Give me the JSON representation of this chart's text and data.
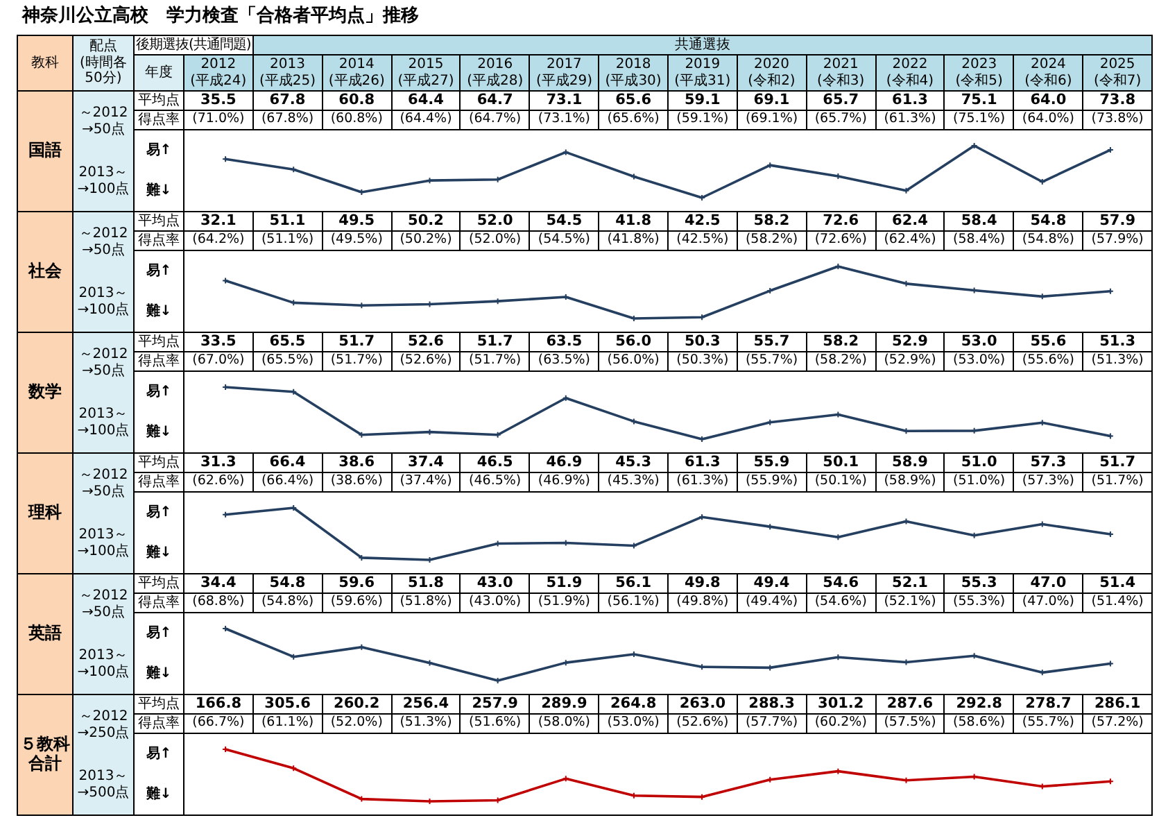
{
  "chart_data": [
    {
      "type": "heatmap",
      "title": "神奈川公立高校　学力検査「合格者平均点」推移",
      "xlabel": "年度",
      "ylabel": "国語",
      "annotations": [
        "教科",
        "配点",
        "(時間各50分)",
        "後期選抜(共通問題)",
        "共通選抜",
        "～2012\n→50点",
        "2013～\n→100点"
      ],
      "categories": [
        "2012\n(平成24)",
        "2013\n(平成25)",
        "2014\n(平成26)",
        "2015\n(平成27)",
        "2016\n(平成28)",
        "2017\n(平成29)",
        "2018\n(平成30)",
        "2019\n(平成31)",
        "2020\n(令和2)",
        "2021\n(令和3)",
        "2022\n(令和4)",
        "2023\n(令和5)",
        "2024\n(令和6)",
        "2025\n(令和7)"
      ],
      "y_categories": [
        "平均点"
      ],
      "cells": [
        [
          35.5,
          67.8,
          60.8,
          64.4,
          64.7,
          73.1,
          65.6,
          59.1,
          69.1,
          65.7,
          61.3,
          75.1,
          64.0,
          73.8
        ]
      ],
      "cell_labels": [
        [
          "35.5",
          "67.8",
          "60.8",
          "64.4",
          "64.7",
          "73.1",
          "65.6",
          "59.1",
          "69.1",
          "65.7",
          "61.3",
          "75.1",
          "64.0",
          "73.8"
        ]
      ]
    },
    {
      "type": "line",
      "tick_labels": false,
      "marker": "cross",
      "annotations": [
        "得点率",
        "易↑",
        "難↓"
      ],
      "categories": [
        null,
        null,
        null,
        null,
        null,
        null,
        null,
        null,
        null,
        null,
        null,
        null,
        null,
        null
      ],
      "series": [
        {
          "color": "#243f60",
          "values": [
            71.0,
            67.8,
            60.8,
            64.4,
            64.7,
            73.1,
            65.6,
            59.1,
            69.1,
            65.7,
            61.3,
            75.1,
            64.0,
            73.8
          ],
          "value_labels": [
            "(71.0%)",
            "(67.8%)",
            "(60.8%)",
            "(64.4%)",
            "(64.7%)",
            "(73.1%)",
            "(65.6%)",
            "(59.1%)",
            "(69.1%)",
            "(65.7%)",
            "(61.3%)",
            "(75.1%)",
            "(64.0%)",
            "(73.8%)"
          ]
        }
      ]
    },
    {
      "type": "heatmap",
      "tick_labels": "y",
      "ylabel": "社会",
      "annotations": [
        "～2012\n→50点",
        "2013～\n→100点"
      ],
      "categories": [
        null,
        null,
        null,
        null,
        null,
        null,
        null,
        null,
        null,
        null,
        null,
        null,
        null,
        null
      ],
      "y_categories": [
        "平均点"
      ],
      "cells": [
        [
          32.1,
          51.1,
          49.5,
          50.2,
          52.0,
          54.5,
          41.8,
          42.5,
          58.2,
          72.6,
          62.4,
          58.4,
          54.8,
          57.9
        ]
      ],
      "cell_labels": [
        [
          "32.1",
          "51.1",
          "49.5",
          "50.2",
          "52.0",
          "54.5",
          "41.8",
          "42.5",
          "58.2",
          "72.6",
          "62.4",
          "58.4",
          "54.8",
          "57.9"
        ]
      ]
    },
    {
      "type": "line",
      "tick_labels": false,
      "marker": "cross",
      "annotations": [
        "得点率",
        "易↑",
        "難↓"
      ],
      "categories": [
        null,
        null,
        null,
        null,
        null,
        null,
        null,
        null,
        null,
        null,
        null,
        null,
        null,
        null
      ],
      "series": [
        {
          "color": "#243f60",
          "values": [
            64.2,
            51.1,
            49.5,
            50.2,
            52.0,
            54.5,
            41.8,
            42.5,
            58.2,
            72.6,
            62.4,
            58.4,
            54.8,
            57.9
          ],
          "value_labels": [
            "(64.2%)",
            "(51.1%)",
            "(49.5%)",
            "(50.2%)",
            "(52.0%)",
            "(54.5%)",
            "(41.8%)",
            "(42.5%)",
            "(58.2%)",
            "(72.6%)",
            "(62.4%)",
            "(58.4%)",
            "(54.8%)",
            "(57.9%)"
          ]
        }
      ]
    },
    {
      "type": "heatmap",
      "tick_labels": "y",
      "ylabel": "数学",
      "annotations": [
        "～2012\n→50点",
        "2013～\n→100点"
      ],
      "categories": [
        null,
        null,
        null,
        null,
        null,
        null,
        null,
        null,
        null,
        null,
        null,
        null,
        null,
        null
      ],
      "y_categories": [
        "平均点"
      ],
      "cells": [
        [
          33.5,
          65.5,
          51.7,
          52.6,
          51.7,
          63.5,
          56.0,
          50.3,
          55.7,
          58.2,
          52.9,
          53.0,
          55.6,
          51.3
        ]
      ],
      "cell_labels": [
        [
          "33.5",
          "65.5",
          "51.7",
          "52.6",
          "51.7",
          "63.5",
          "56.0",
          "50.3",
          "55.7",
          "58.2",
          "52.9",
          "53.0",
          "55.6",
          "51.3"
        ]
      ]
    },
    {
      "type": "line",
      "tick_labels": false,
      "marker": "cross",
      "annotations": [
        "得点率",
        "易↑",
        "難↓"
      ],
      "categories": [
        null,
        null,
        null,
        null,
        null,
        null,
        null,
        null,
        null,
        null,
        null,
        null,
        null,
        null
      ],
      "series": [
        {
          "color": "#243f60",
          "values": [
            67.0,
            65.5,
            51.7,
            52.6,
            51.7,
            63.5,
            56.0,
            50.3,
            55.7,
            58.2,
            52.9,
            53.0,
            55.6,
            51.3
          ],
          "value_labels": [
            "(67.0%)",
            "(65.5%)",
            "(51.7%)",
            "(52.6%)",
            "(51.7%)",
            "(63.5%)",
            "(56.0%)",
            "(50.3%)",
            "(55.7%)",
            "(58.2%)",
            "(52.9%)",
            "(53.0%)",
            "(55.6%)",
            "(51.3%)"
          ]
        }
      ]
    },
    {
      "type": "heatmap",
      "tick_labels": "y",
      "ylabel": "理科",
      "annotations": [
        "～2012\n→50点",
        "2013～\n→100点"
      ],
      "categories": [
        null,
        null,
        null,
        null,
        null,
        null,
        null,
        null,
        null,
        null,
        null,
        null,
        null,
        null
      ],
      "y_categories": [
        "平均点"
      ],
      "cells": [
        [
          31.3,
          66.4,
          38.6,
          37.4,
          46.5,
          46.9,
          45.3,
          61.3,
          55.9,
          50.1,
          58.9,
          51.0,
          57.3,
          51.7
        ]
      ],
      "cell_labels": [
        [
          "31.3",
          "66.4",
          "38.6",
          "37.4",
          "46.5",
          "46.9",
          "45.3",
          "61.3",
          "55.9",
          "50.1",
          "58.9",
          "51.0",
          "57.3",
          "51.7"
        ]
      ]
    },
    {
      "type": "line",
      "tick_labels": false,
      "marker": "cross",
      "annotations": [
        "得点率",
        "易↑",
        "難↓"
      ],
      "categories": [
        null,
        null,
        null,
        null,
        null,
        null,
        null,
        null,
        null,
        null,
        null,
        null,
        null,
        null
      ],
      "series": [
        {
          "color": "#243f60",
          "values": [
            62.6,
            66.4,
            38.6,
            37.4,
            46.5,
            46.9,
            45.3,
            61.3,
            55.9,
            50.1,
            58.9,
            51.0,
            57.3,
            51.7
          ],
          "value_labels": [
            "(62.6%)",
            "(66.4%)",
            "(38.6%)",
            "(37.4%)",
            "(46.5%)",
            "(46.9%)",
            "(45.3%)",
            "(61.3%)",
            "(55.9%)",
            "(50.1%)",
            "(58.9%)",
            "(51.0%)",
            "(57.3%)",
            "(51.7%)"
          ]
        }
      ]
    },
    {
      "type": "heatmap",
      "tick_labels": "y",
      "ylabel": "英語",
      "annotations": [
        "～2012\n→50点",
        "2013～\n→100点"
      ],
      "categories": [
        null,
        null,
        null,
        null,
        null,
        null,
        null,
        null,
        null,
        null,
        null,
        null,
        null,
        null
      ],
      "y_categories": [
        "平均点"
      ],
      "cells": [
        [
          34.4,
          54.8,
          59.6,
          51.8,
          43.0,
          51.9,
          56.1,
          49.8,
          49.4,
          54.6,
          52.1,
          55.3,
          47.0,
          51.4
        ]
      ],
      "cell_labels": [
        [
          "34.4",
          "54.8",
          "59.6",
          "51.8",
          "43.0",
          "51.9",
          "56.1",
          "49.8",
          "49.4",
          "54.6",
          "52.1",
          "55.3",
          "47.0",
          "51.4"
        ]
      ]
    },
    {
      "type": "line",
      "tick_labels": false,
      "marker": "cross",
      "annotations": [
        "得点率",
        "易↑",
        "難↓"
      ],
      "categories": [
        null,
        null,
        null,
        null,
        null,
        null,
        null,
        null,
        null,
        null,
        null,
        null,
        null,
        null
      ],
      "series": [
        {
          "color": "#243f60",
          "values": [
            68.8,
            54.8,
            59.6,
            51.8,
            43.0,
            51.9,
            56.1,
            49.8,
            49.4,
            54.6,
            52.1,
            55.3,
            47.0,
            51.4
          ],
          "value_labels": [
            "(68.8%)",
            "(54.8%)",
            "(59.6%)",
            "(51.8%)",
            "(43.0%)",
            "(51.9%)",
            "(56.1%)",
            "(49.8%)",
            "(49.4%)",
            "(54.6%)",
            "(52.1%)",
            "(55.3%)",
            "(47.0%)",
            "(51.4%)"
          ]
        }
      ]
    },
    {
      "type": "heatmap",
      "tick_labels": "y",
      "ylabel": "５教科合計",
      "annotations": [
        "～2012\n→250点",
        "2013～\n→500点"
      ],
      "categories": [
        null,
        null,
        null,
        null,
        null,
        null,
        null,
        null,
        null,
        null,
        null,
        null,
        null,
        null
      ],
      "y_categories": [
        "平均点"
      ],
      "cells": [
        [
          166.8,
          305.6,
          260.2,
          256.4,
          257.9,
          289.9,
          264.8,
          263.0,
          288.3,
          301.2,
          287.6,
          292.8,
          278.7,
          286.1
        ]
      ],
      "cell_labels": [
        [
          "166.8",
          "305.6",
          "260.2",
          "256.4",
          "257.9",
          "289.9",
          "264.8",
          "263.0",
          "288.3",
          "301.2",
          "287.6",
          "292.8",
          "278.7",
          "286.1"
        ]
      ]
    },
    {
      "type": "line",
      "tick_labels": false,
      "marker": "cross",
      "annotations": [
        "得点率",
        "易↑",
        "難↓"
      ],
      "categories": [
        null,
        null,
        null,
        null,
        null,
        null,
        null,
        null,
        null,
        null,
        null,
        null,
        null,
        null
      ],
      "series": [
        {
          "color": "#c00000",
          "values": [
            66.7,
            61.1,
            52.0,
            51.3,
            51.6,
            58.0,
            53.0,
            52.6,
            57.7,
            60.2,
            57.5,
            58.6,
            55.7,
            57.2
          ],
          "value_labels": [
            "(66.7%)",
            "(61.1%)",
            "(52.0%)",
            "(51.3%)",
            "(51.6%)",
            "(58.0%)",
            "(53.0%)",
            "(52.6%)",
            "(57.7%)",
            "(60.2%)",
            "(57.5%)",
            "(58.6%)",
            "(55.7%)",
            "(57.2%)"
          ]
        }
      ]
    }
  ]
}
